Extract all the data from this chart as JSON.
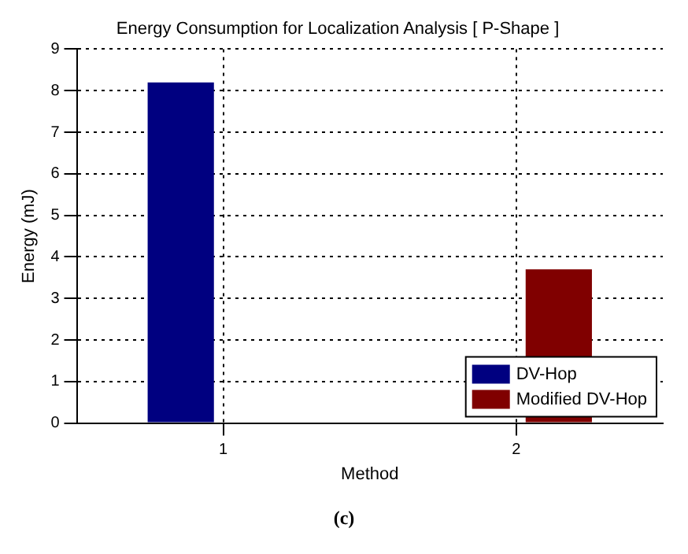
{
  "chart_data": {
    "type": "bar",
    "title": "Energy Consumption for Localization Analysis [ P-Shape ]",
    "xlabel": "Method",
    "ylabel": "Energy (mJ)",
    "categories": [
      "1",
      "2"
    ],
    "series": [
      {
        "name": "DV-Hop",
        "color": "#000080",
        "values": [
          8.2,
          null
        ]
      },
      {
        "name": "Modified DV-Hop",
        "color": "#800000",
        "values": [
          null,
          3.7
        ]
      }
    ],
    "ylim": [
      0,
      9
    ],
    "yticks": [
      0,
      1,
      2,
      3,
      4,
      5,
      6,
      7,
      8,
      9
    ],
    "grid": true,
    "legend": "bottom right",
    "annotations": [
      "(c)"
    ]
  }
}
